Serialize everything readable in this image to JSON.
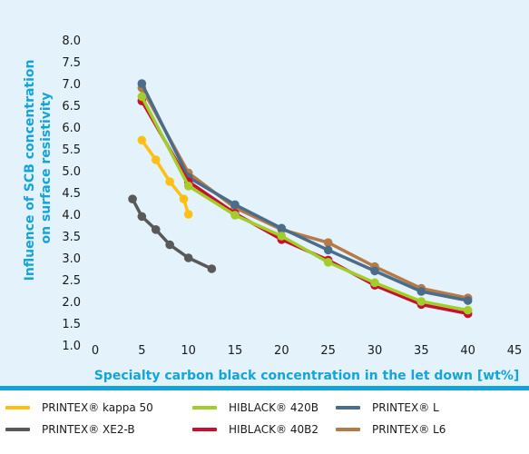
{
  "chart_data": {
    "type": "line",
    "xlabel": "Specialty carbon black concentration in the let down [wt%]",
    "ylabel": "Influence of SCB concentration on surface resistivity",
    "xlim": [
      0,
      45
    ],
    "ylim": [
      1.0,
      8.0
    ],
    "xticks": [
      0,
      5,
      10,
      15,
      20,
      25,
      30,
      35,
      40,
      45
    ],
    "yticks": [
      1.0,
      1.5,
      2.0,
      2.5,
      3.0,
      3.5,
      4.0,
      4.5,
      5.0,
      5.5,
      6.0,
      6.5,
      7.0,
      7.5,
      8.0
    ],
    "ytick_labels": [
      "1.0",
      "1.5",
      "2.0",
      "2.5",
      "3.0",
      "3.5",
      "4.0",
      "4.5",
      "5.0",
      "5.5",
      "6.0",
      "6.5",
      "7.0",
      "7.5",
      "8.0"
    ],
    "grid": false,
    "legend_position": "bottom",
    "series": [
      {
        "name": "PRINTEX® L6",
        "color": "#b67a46",
        "x": [
          5,
          10,
          15,
          20,
          25,
          30,
          35,
          40
        ],
        "y": [
          6.9,
          4.95,
          4.15,
          3.65,
          3.35,
          2.8,
          2.3,
          2.08
        ]
      },
      {
        "name": "PRINTEX® L",
        "color": "#4a6d8c",
        "x": [
          5,
          10,
          15,
          20,
          25,
          30,
          35,
          40
        ],
        "y": [
          7.0,
          4.85,
          4.22,
          3.68,
          3.18,
          2.7,
          2.23,
          2.02
        ]
      },
      {
        "name": "HIBLACK® 40B2",
        "color": "#c8102e",
        "x": [
          5,
          10,
          15,
          20,
          25,
          30,
          35,
          40
        ],
        "y": [
          6.6,
          4.75,
          4.02,
          3.42,
          2.95,
          2.37,
          1.93,
          1.72
        ]
      },
      {
        "name": "HIBLACK® 420B",
        "color": "#a3cd2a",
        "x": [
          5,
          10,
          15,
          20,
          25,
          30,
          35,
          40
        ],
        "y": [
          6.7,
          4.65,
          3.98,
          3.5,
          2.9,
          2.43,
          2.0,
          1.8
        ]
      },
      {
        "name": "PRINTEX® kappa 50",
        "color": "#ffbf14",
        "x": [
          5,
          6.5,
          8,
          9.5,
          10
        ],
        "y": [
          5.7,
          5.25,
          4.75,
          4.35,
          4.0
        ]
      },
      {
        "name": "PRINTEX® XE2-B",
        "color": "#595959",
        "x": [
          4,
          5,
          6.5,
          8,
          10,
          12.5
        ],
        "y": [
          4.35,
          3.95,
          3.65,
          3.3,
          3.0,
          2.75
        ]
      }
    ]
  },
  "legend": [
    {
      "label": "PRINTEX® kappa 50",
      "color": "#ffbf14"
    },
    {
      "label": "HIBLACK® 420B",
      "color": "#a3cd2a"
    },
    {
      "label": "PRINTEX® L",
      "color": "#4a6d8c"
    },
    {
      "label": "PRINTEX® XE2-B",
      "color": "#595959"
    },
    {
      "label": "HIBLACK® 40B2",
      "color": "#c8102e"
    },
    {
      "label": "PRINTEX® L6",
      "color": "#b67a46"
    }
  ]
}
